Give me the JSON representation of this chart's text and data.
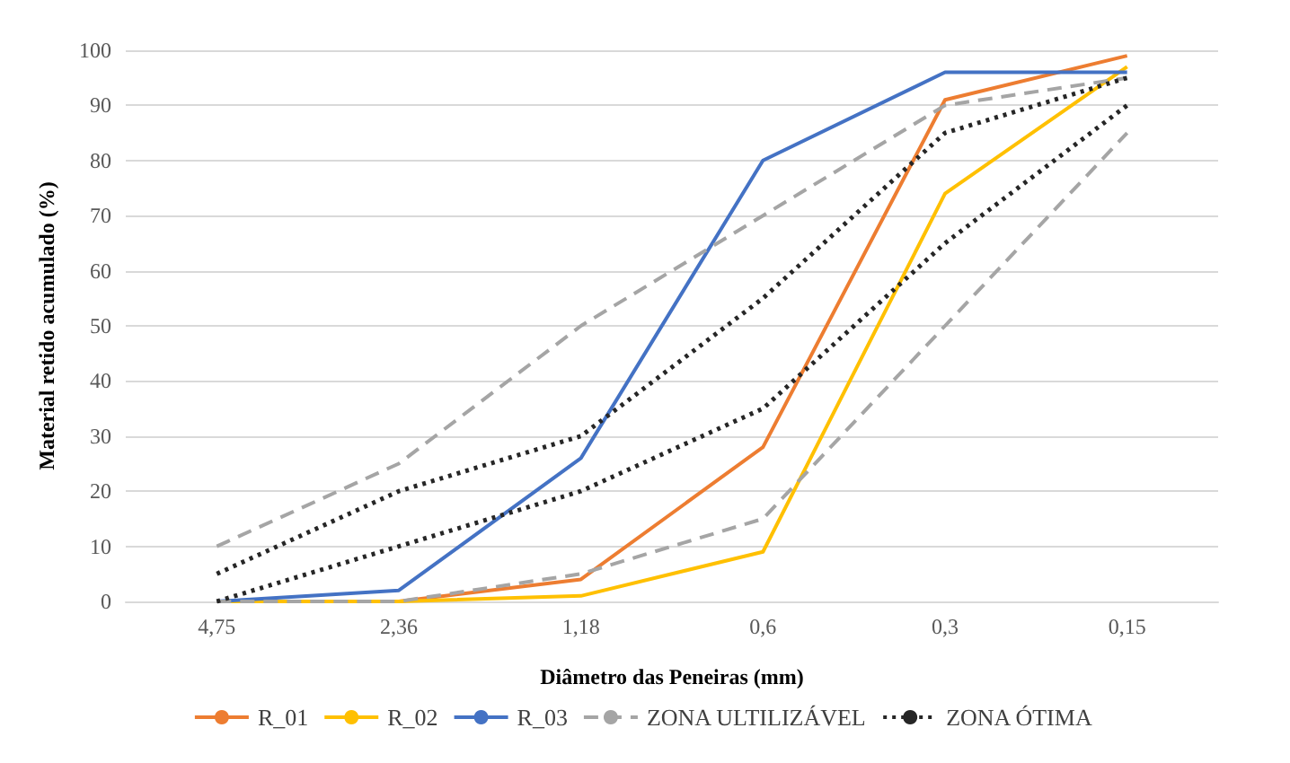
{
  "chart_data": {
    "type": "line",
    "xlabel": "Diâmetro das Peneiras (mm)",
    "ylabel": "Material retido acumulado (%)",
    "categories": [
      "4,75",
      "2,36",
      "1,18",
      "0,6",
      "0,3",
      "0,15"
    ],
    "ylim": [
      0,
      100
    ],
    "yticks": [
      0,
      10,
      20,
      30,
      40,
      50,
      60,
      70,
      80,
      90,
      100
    ],
    "grid": "y",
    "legend": "bottom",
    "marker": "none",
    "series": [
      {
        "name": "R_01",
        "color": "#ed7d31",
        "line_style": "solid",
        "values": [
          0,
          0,
          4,
          28,
          91,
          99
        ]
      },
      {
        "name": "R_02",
        "color": "#ffc000",
        "line_style": "solid",
        "values": [
          0,
          0,
          1,
          9,
          74,
          97
        ]
      },
      {
        "name": "R_03",
        "color": "#4472c4",
        "line_style": "solid",
        "values": [
          0,
          2,
          26,
          80,
          96,
          96
        ]
      },
      {
        "name": "ZONA ULTILIZÁVEL",
        "color": "#a5a5a5",
        "line_style": "dashed",
        "values": [
          10,
          25,
          50,
          70,
          90,
          95
        ]
      },
      {
        "color": "#a5a5a5",
        "line_style": "dashed",
        "values": [
          0,
          0,
          5,
          15,
          50,
          85
        ]
      },
      {
        "name": "ZONA ÓTIMA",
        "color": "#262626",
        "line_style": "dotted",
        "values": [
          5,
          20,
          30,
          55,
          85,
          95
        ]
      },
      {
        "color": "#262626",
        "line_style": "dotted",
        "values": [
          0,
          10,
          20,
          35,
          65,
          90
        ]
      }
    ]
  }
}
